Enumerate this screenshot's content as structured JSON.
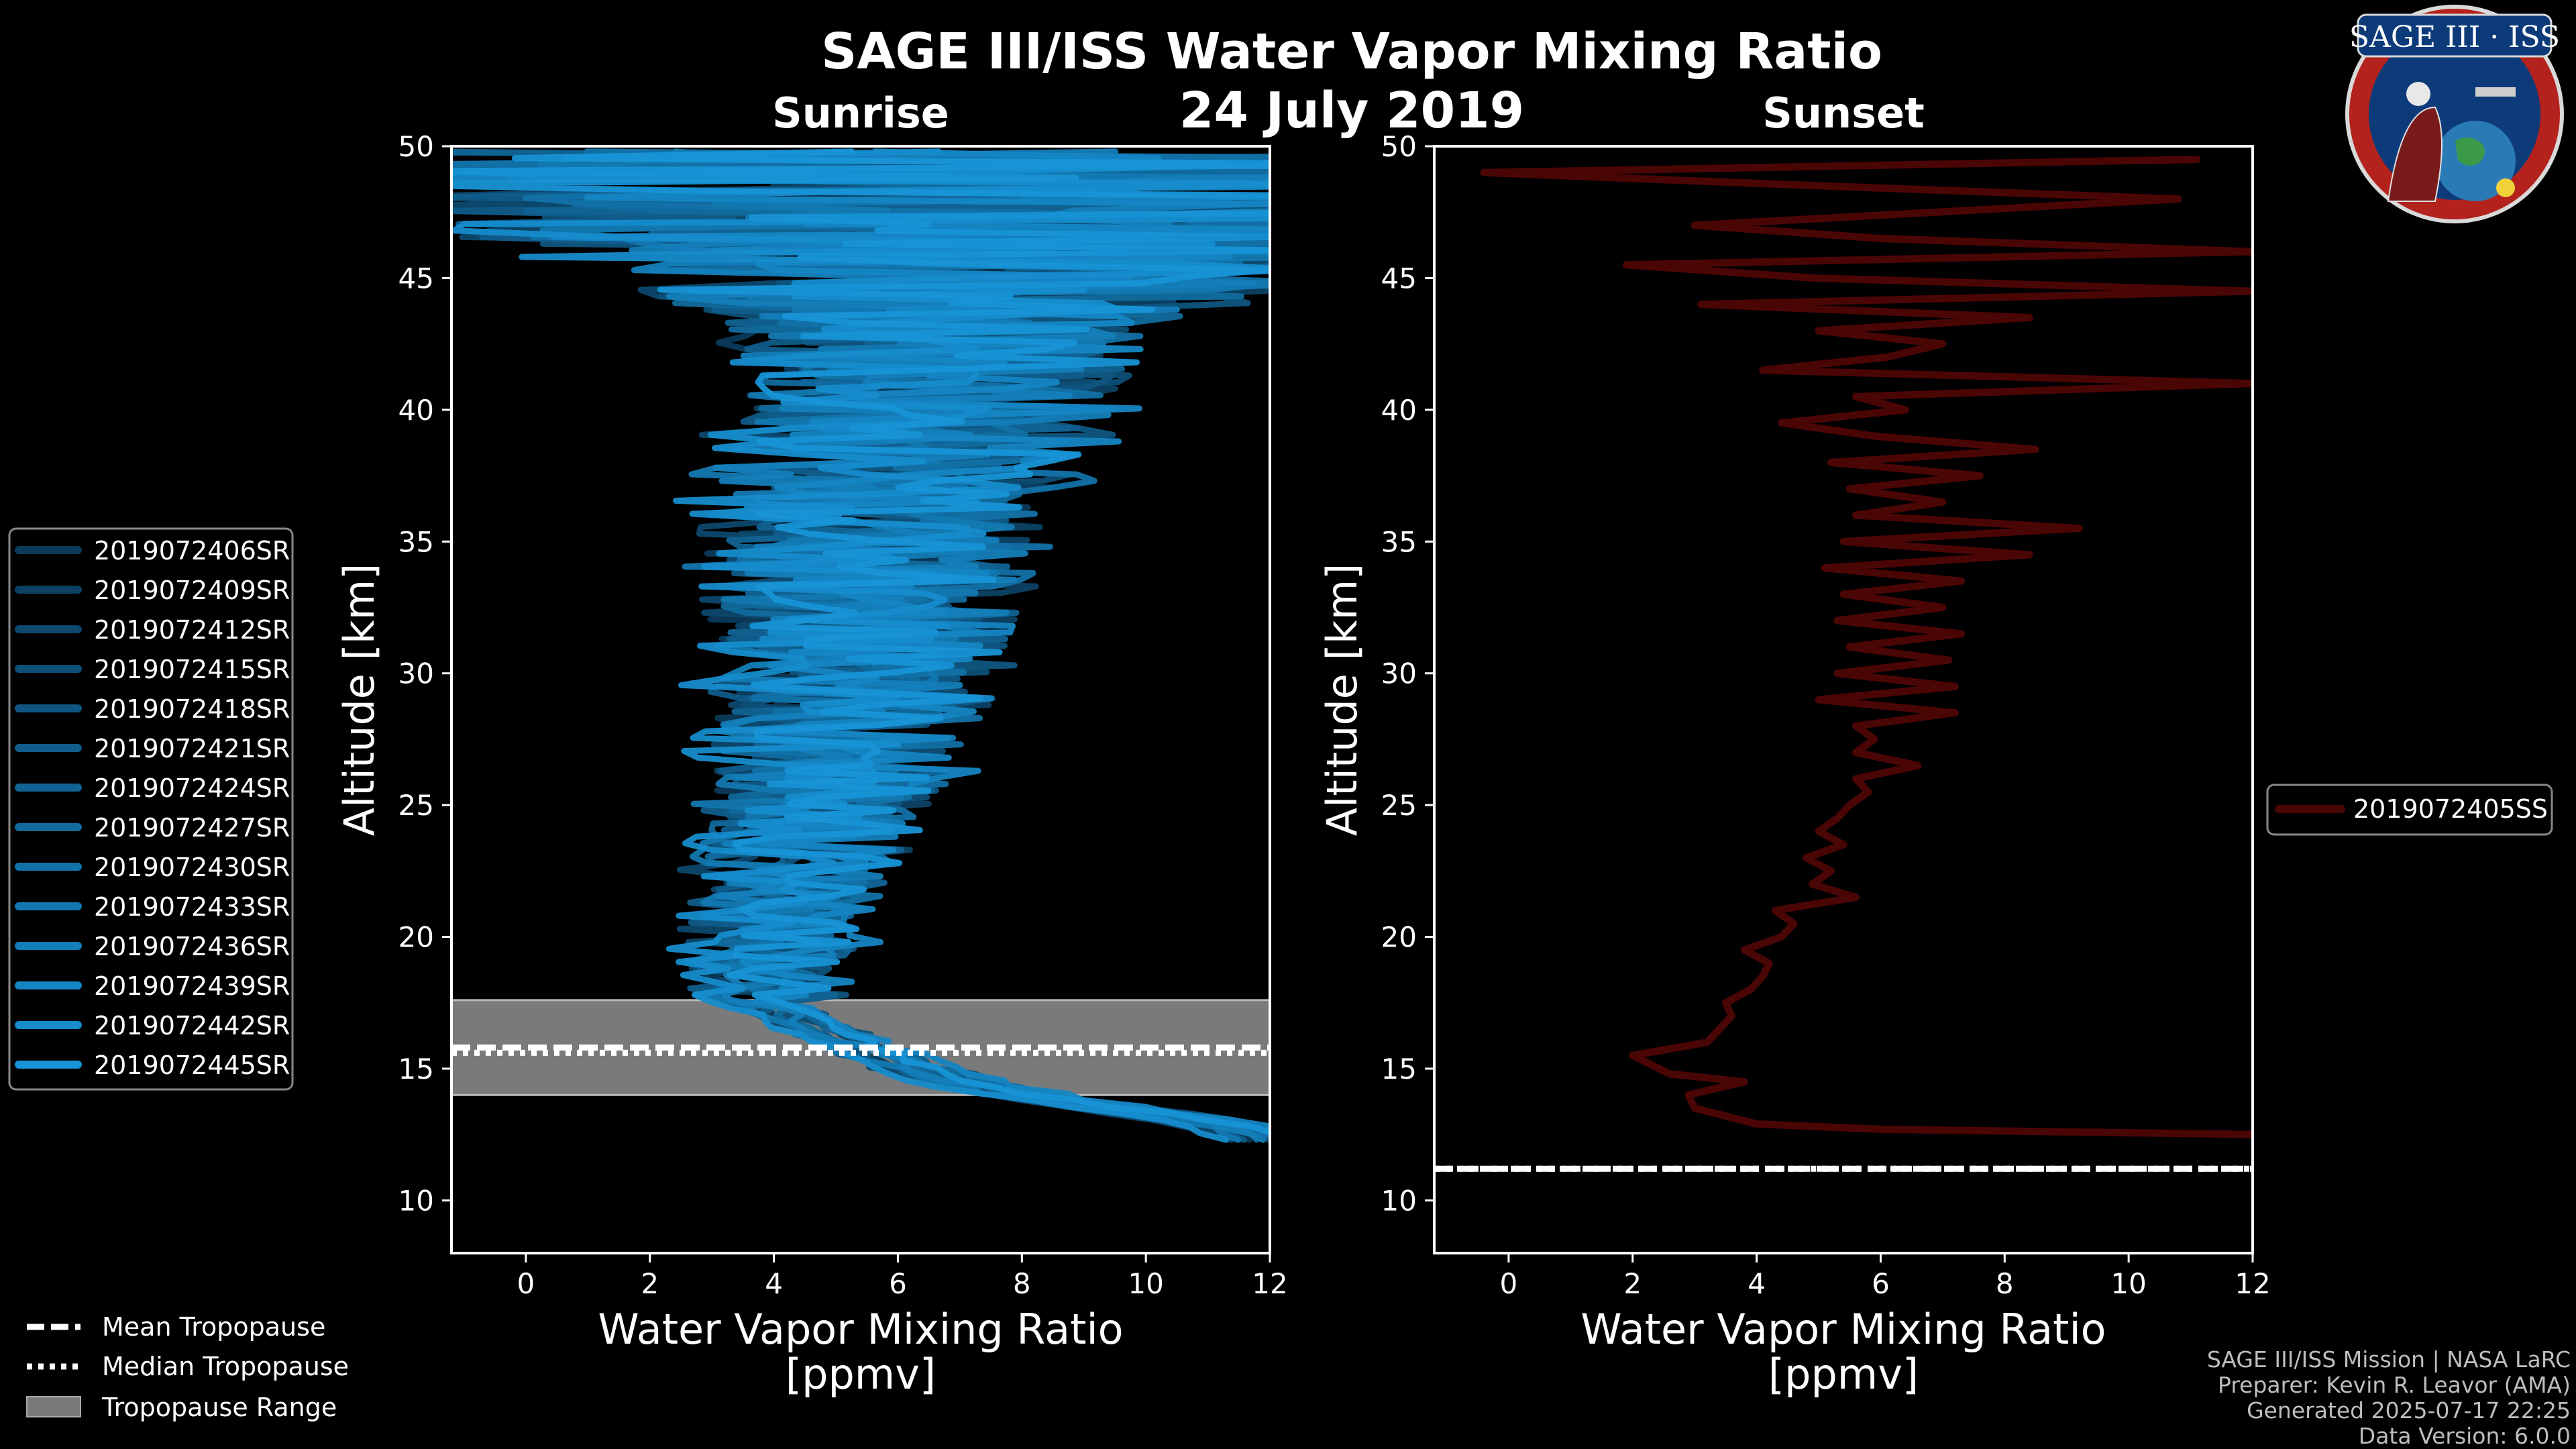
{
  "title": "SAGE III/ISS Water Vapor Mixing Ratio",
  "date": "24 July 2019",
  "logo_text": "SAGE III · ISS",
  "credits": [
    "SAGE III/ISS Mission | NASA LaRC",
    "Preparer: Kevin R. Leavor (AMA)",
    "Generated 2025-07-17 22:25",
    "Data Version: 6.0.0"
  ],
  "tropopause_legend": {
    "mean": "Mean Tropopause",
    "median": "Median Tropopause",
    "range": "Tropopause Range"
  },
  "colors": {
    "background": "#000000",
    "sunrise_dark": "#0b3a5a",
    "sunrise_light": "#1793d6",
    "sunset": "#4a0505",
    "tropopause_fill": "#7a7a7a"
  },
  "chart_data": [
    {
      "type": "line",
      "panel": "left",
      "title": "Sunrise",
      "xlabel": "Water Vapor Mixing Ratio\n[ppmv]",
      "ylabel": "Altitude [km]",
      "xlim": [
        -1.2,
        12
      ],
      "ylim": [
        8,
        50
      ],
      "xticks": [
        0,
        2,
        4,
        6,
        8,
        10,
        12
      ],
      "yticks": [
        10,
        15,
        20,
        25,
        30,
        35,
        40,
        45,
        50
      ],
      "tropopause": {
        "mean": 15.8,
        "median": 15.6,
        "range": [
          14.0,
          17.6
        ]
      },
      "series": [
        {
          "name": "2019072406SR",
          "seed": 11,
          "shift": -0.2
        },
        {
          "name": "2019072409SR",
          "seed": 23,
          "shift": 0.3
        },
        {
          "name": "2019072412SR",
          "seed": 37,
          "shift": -0.5
        },
        {
          "name": "2019072415SR",
          "seed": 41,
          "shift": 0.1
        },
        {
          "name": "2019072418SR",
          "seed": 53,
          "shift": 0.5
        },
        {
          "name": "2019072421SR",
          "seed": 67,
          "shift": -0.3
        },
        {
          "name": "2019072424SR",
          "seed": 71,
          "shift": 0.2
        },
        {
          "name": "2019072427SR",
          "seed": 83,
          "shift": -0.1
        },
        {
          "name": "2019072430SR",
          "seed": 97,
          "shift": 0.4
        },
        {
          "name": "2019072433SR",
          "seed": 101,
          "shift": -0.4
        },
        {
          "name": "2019072436SR",
          "seed": 113,
          "shift": 0.0
        },
        {
          "name": "2019072439SR",
          "seed": 127,
          "shift": 0.6
        },
        {
          "name": "2019072442SR",
          "seed": 131,
          "shift": -0.6
        },
        {
          "name": "2019072445SR",
          "seed": 149,
          "shift": 0.25
        }
      ],
      "profile_base": [
        [
          12.3,
          12.0
        ],
        [
          13.0,
          11.0
        ],
        [
          13.5,
          9.5
        ],
        [
          14.0,
          8.0
        ],
        [
          14.5,
          7.0
        ],
        [
          15.0,
          6.3
        ],
        [
          15.5,
          5.8
        ],
        [
          16.0,
          5.2
        ],
        [
          16.5,
          4.7
        ],
        [
          17.0,
          4.3
        ],
        [
          17.5,
          4.0
        ],
        [
          18.0,
          3.8
        ],
        [
          19.0,
          3.9
        ],
        [
          20.0,
          4.1
        ],
        [
          22.0,
          4.3
        ],
        [
          24.0,
          4.6
        ],
        [
          26.0,
          4.9
        ],
        [
          28.0,
          5.1
        ],
        [
          30.0,
          5.2
        ],
        [
          32.0,
          5.4
        ],
        [
          34.0,
          5.5
        ],
        [
          36.0,
          5.7
        ],
        [
          38.0,
          6.0
        ],
        [
          40.0,
          6.3
        ],
        [
          42.0,
          6.6
        ],
        [
          44.0,
          7.0
        ],
        [
          46.0,
          7.2
        ],
        [
          48.0,
          7.4
        ],
        [
          50.0,
          7.5
        ]
      ]
    },
    {
      "type": "line",
      "panel": "right",
      "title": "Sunset",
      "xlabel": "Water Vapor Mixing Ratio\n[ppmv]",
      "ylabel": "Altitude [km]",
      "xlim": [
        -1.2,
        12
      ],
      "ylim": [
        8,
        50
      ],
      "xticks": [
        0,
        2,
        4,
        6,
        8,
        10,
        12
      ],
      "yticks": [
        10,
        15,
        20,
        25,
        30,
        35,
        40,
        45,
        50
      ],
      "tropopause": {
        "mean": 11.2,
        "median": 11.2
      },
      "series": [
        {
          "name": "2019072405SS",
          "points": [
            [
              12.5,
              12.0
            ],
            [
              12.7,
              6.0
            ],
            [
              12.9,
              4.0
            ],
            [
              13.5,
              3.0
            ],
            [
              14.0,
              2.9
            ],
            [
              14.5,
              3.8
            ],
            [
              14.8,
              2.6
            ],
            [
              15.5,
              2.0
            ],
            [
              16.0,
              3.2
            ],
            [
              16.5,
              3.4
            ],
            [
              17.0,
              3.6
            ],
            [
              17.5,
              3.5
            ],
            [
              18.0,
              3.9
            ],
            [
              18.5,
              4.1
            ],
            [
              19.0,
              4.2
            ],
            [
              19.5,
              3.8
            ],
            [
              20.0,
              4.4
            ],
            [
              20.5,
              4.6
            ],
            [
              21.0,
              4.3
            ],
            [
              21.5,
              5.6
            ],
            [
              22.0,
              4.9
            ],
            [
              22.5,
              5.2
            ],
            [
              23.0,
              4.8
            ],
            [
              23.5,
              5.4
            ],
            [
              24.0,
              5.0
            ],
            [
              24.5,
              5.3
            ],
            [
              25.0,
              5.5
            ],
            [
              25.5,
              5.8
            ],
            [
              26.0,
              5.6
            ],
            [
              26.5,
              6.6
            ],
            [
              27.0,
              5.6
            ],
            [
              27.5,
              5.9
            ],
            [
              28.0,
              5.6
            ],
            [
              28.5,
              7.2
            ],
            [
              29.0,
              5.0
            ],
            [
              29.5,
              7.2
            ],
            [
              30.0,
              5.3
            ],
            [
              30.5,
              7.1
            ],
            [
              31.0,
              5.5
            ],
            [
              31.5,
              7.3
            ],
            [
              32.0,
              5.3
            ],
            [
              32.5,
              7.0
            ],
            [
              33.0,
              5.4
            ],
            [
              33.5,
              7.3
            ],
            [
              34.0,
              5.1
            ],
            [
              34.5,
              8.4
            ],
            [
              35.0,
              5.4
            ],
            [
              35.5,
              9.2
            ],
            [
              36.0,
              5.6
            ],
            [
              36.5,
              7.0
            ],
            [
              37.0,
              5.5
            ],
            [
              37.5,
              7.6
            ],
            [
              38.0,
              5.2
            ],
            [
              38.5,
              8.5
            ],
            [
              39.0,
              5.9
            ],
            [
              39.5,
              4.4
            ],
            [
              40.0,
              6.4
            ],
            [
              40.5,
              5.6
            ],
            [
              41.0,
              12.0
            ],
            [
              41.5,
              4.1
            ],
            [
              42.0,
              6.1
            ],
            [
              42.5,
              7.0
            ],
            [
              43.0,
              5.0
            ],
            [
              43.5,
              8.4
            ],
            [
              44.0,
              3.1
            ],
            [
              44.5,
              12.0
            ],
            [
              45.0,
              4.9
            ],
            [
              45.5,
              1.9
            ],
            [
              46.0,
              12.0
            ],
            [
              46.5,
              6.0
            ],
            [
              47.0,
              3.0
            ],
            [
              48.0,
              10.8
            ],
            [
              48.5,
              5.0
            ],
            [
              49.0,
              -0.4
            ],
            [
              49.5,
              11.1
            ]
          ]
        }
      ]
    }
  ]
}
